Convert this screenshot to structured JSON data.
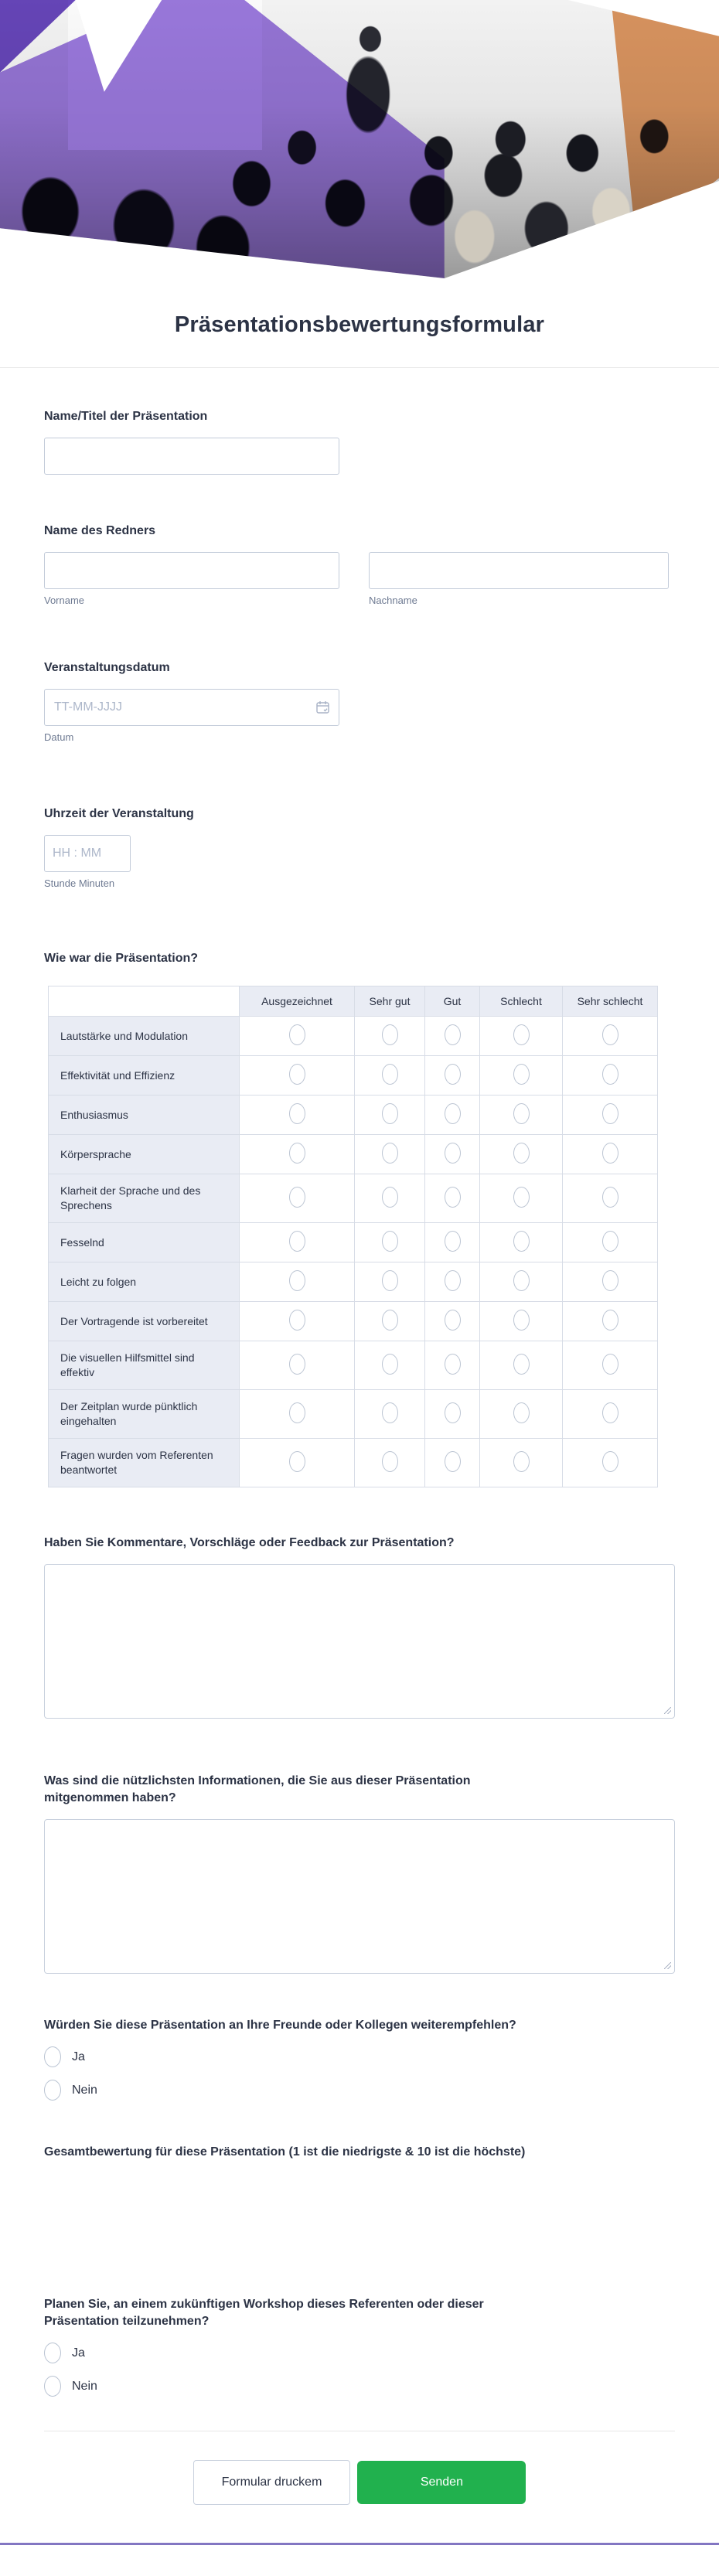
{
  "title": "Präsentationsbewertungsformular",
  "header": {
    "description": "presentation-audience-photo-collage",
    "colors": {
      "purple_overlay": "#9b79de",
      "purple_corner": "#6a48c0",
      "orange_overlay": "#e29a63"
    }
  },
  "fields": {
    "presentation_name": {
      "label": "Name/Titel der Präsentation"
    },
    "speaker_name": {
      "label": "Name des Redners",
      "sublabel_first": "Vorname",
      "sublabel_last": "Nachname"
    },
    "event_date": {
      "label": "Veranstaltungsdatum",
      "placeholder": "TT-MM-JJJJ",
      "sublabel": "Datum"
    },
    "event_time": {
      "label": "Uhrzeit der Veranstaltung",
      "placeholder": "HH : MM",
      "sublabel": "Stunde Minuten"
    },
    "matrix": {
      "label": "Wie war die Präsentation?",
      "columns": [
        "Ausgezeichnet",
        "Sehr gut",
        "Gut",
        "Schlecht",
        "Sehr schlecht"
      ],
      "rows": [
        "Lautstärke und Modulation",
        "Effektivität und Effizienz",
        "Enthusiasmus",
        "Körpersprache",
        "Klarheit der Sprache und des Sprechens",
        "Fesselnd",
        "Leicht zu folgen",
        "Der Vortragende ist vorbereitet",
        "Die visuellen Hilfsmittel sind effektiv",
        "Der Zeitplan wurde pünktlich eingehalten",
        "Fragen wurden vom Referenten beantwortet"
      ]
    },
    "comments": {
      "label": "Haben Sie Kommentare, Vorschläge oder Feedback zur Präsentation?"
    },
    "useful_info": {
      "label": "Was sind die nützlichsten Informationen, die Sie aus dieser Präsentation mitgenommen haben?"
    },
    "recommend": {
      "label": "Würden Sie diese Präsentation an Ihre Freunde oder Kollegen weiterempfehlen?",
      "options": [
        "Ja",
        "Nein"
      ]
    },
    "overall_rating": {
      "label": "Gesamtbewertung für diese Präsentation (1 ist die niedrigste & 10 ist die höchste)"
    },
    "future_workshop": {
      "label": "Planen Sie, an einem zukünftigen Workshop dieses Referenten oder dieser Präsentation teilzunehmen?",
      "options": [
        "Ja",
        "Nein"
      ]
    }
  },
  "footer": {
    "print_label": "Formular druckem",
    "submit_label": "Senden",
    "submit_color": "#21b14e",
    "bottom_line_color": "#8376c2"
  }
}
